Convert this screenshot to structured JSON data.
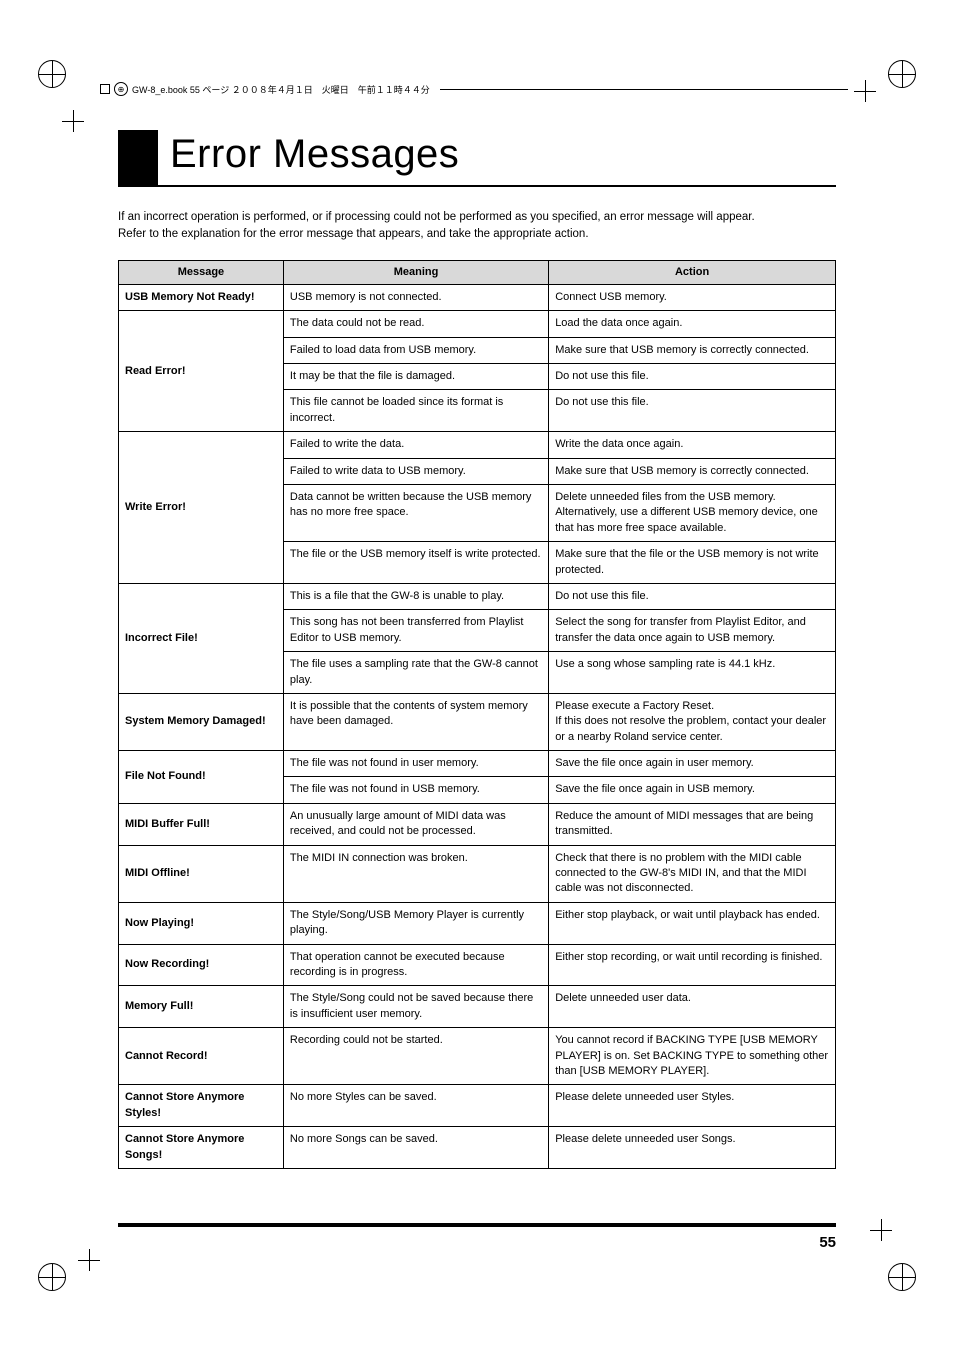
{
  "header": {
    "text": "GW-8_e.book  55 ページ  ２００８年４月１日　火曜日　午前１１時４４分"
  },
  "title": "Error Messages",
  "intro": [
    "If an incorrect operation is performed, or if processing could not be performed as you specified, an error message will appear.",
    "Refer to the explanation for the error message that appears, and take the appropriate action."
  ],
  "table": {
    "headers": {
      "c1": "Message",
      "c2": "Meaning",
      "c3": "Action"
    },
    "r1": {
      "msg": "USB Memory Not Ready!",
      "mean": "USB memory is not connected.",
      "act": "Connect USB memory."
    },
    "r2": {
      "msg": "Read Error!",
      "m1": "The data could not be read.",
      "a1": "Load the data once again.",
      "m2": "Failed to load data from USB memory.",
      "a2": "Make sure that USB memory is correctly connected.",
      "m3": "It may be that the file is damaged.",
      "a3": "Do not use this file.",
      "m4": "This file cannot be loaded since its format is incorrect.",
      "a4": "Do not use this file."
    },
    "r3": {
      "msg": "Write Error!",
      "m1": "Failed to write the data.",
      "a1": "Write the data once again.",
      "m2": "Failed to write data to USB memory.",
      "a2": "Make sure that USB memory is correctly connected.",
      "m3": "Data cannot be written because the USB memory has no more free space.",
      "a3": "Delete unneeded files from the USB memory. Alternatively, use a different USB memory device, one that has more free space available.",
      "m4": "The file or the USB memory itself is write protected.",
      "a4": "Make sure that the file or the USB memory is not write protected."
    },
    "r4": {
      "msg": "Incorrect File!",
      "m1": "This is a file that the GW-8 is unable to play.",
      "a1": "Do not use this file.",
      "m2": "This song has not been transferred from Playlist Editor to USB memory.",
      "a2": "Select the song for transfer from Playlist Editor, and transfer the data once again to USB memory.",
      "m3": "The file uses a sampling rate that the GW-8 cannot play.",
      "a3": "Use a song whose sampling rate is 44.1 kHz."
    },
    "r5": {
      "msg": "System Memory Damaged!",
      "mean": "It is possible that the contents of system memory have been damaged.",
      "act": "Please execute a Factory Reset.\nIf this does not resolve the problem, contact your dealer or a nearby Roland service center."
    },
    "r6": {
      "msg": "File Not Found!",
      "m1": "The file was not found in user memory.",
      "a1": "Save the file once again in user memory.",
      "m2": "The file was not found in USB memory.",
      "a2": "Save the file once again in USB memory."
    },
    "r7": {
      "msg": "MIDI Buffer Full!",
      "mean": "An unusually large amount of MIDI data was received, and could not be processed.",
      "act": "Reduce the amount of MIDI messages that are being transmitted."
    },
    "r8": {
      "msg": "MIDI Offline!",
      "mean": "The MIDI IN connection was broken.",
      "act": "Check that there is no problem with the MIDI cable connected to the GW-8's MIDI IN, and that the MIDI cable was not disconnected."
    },
    "r9": {
      "msg": "Now Playing!",
      "mean": "The Style/Song/USB Memory Player is currently playing.",
      "act": "Either stop playback, or wait until playback has ended."
    },
    "r10": {
      "msg": "Now Recording!",
      "mean": "That operation cannot be executed because recording is in progress.",
      "act": "Either stop recording, or wait until recording is finished."
    },
    "r11": {
      "msg": "Memory Full!",
      "mean": "The Style/Song could not be saved because there is insufficient user memory.",
      "act": "Delete unneeded user data."
    },
    "r12": {
      "msg": "Cannot Record!",
      "mean": "Recording could not be started.",
      "act": "You cannot record if BACKING TYPE [USB MEMORY PLAYER] is on. Set BACKING TYPE to something other than [USB MEMORY PLAYER]."
    },
    "r13": {
      "msg": "Cannot Store Anymore Styles!",
      "mean": "No more Styles can be saved.",
      "act": "Please delete unneeded user Styles."
    },
    "r14": {
      "msg": "Cannot Store Anymore Songs!",
      "mean": "No more Songs can be saved.",
      "act": "Please delete unneeded user Songs."
    }
  },
  "page_number": "55"
}
